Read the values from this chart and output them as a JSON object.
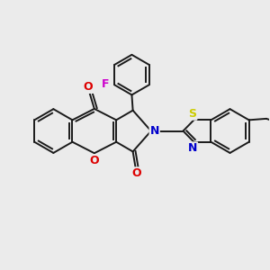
{
  "background_color": "#ebebeb",
  "bond_color": "#1a1a1a",
  "bond_lw": 1.4,
  "atom_colors": {
    "O": "#dd0000",
    "N": "#0000cc",
    "S": "#cccc00",
    "F": "#cc00cc",
    "C": "#1a1a1a"
  },
  "figsize": [
    3.0,
    3.0
  ],
  "dpi": 100,
  "xlim": [
    0,
    10
  ],
  "ylim": [
    0,
    10
  ],
  "font_size": 8.5
}
